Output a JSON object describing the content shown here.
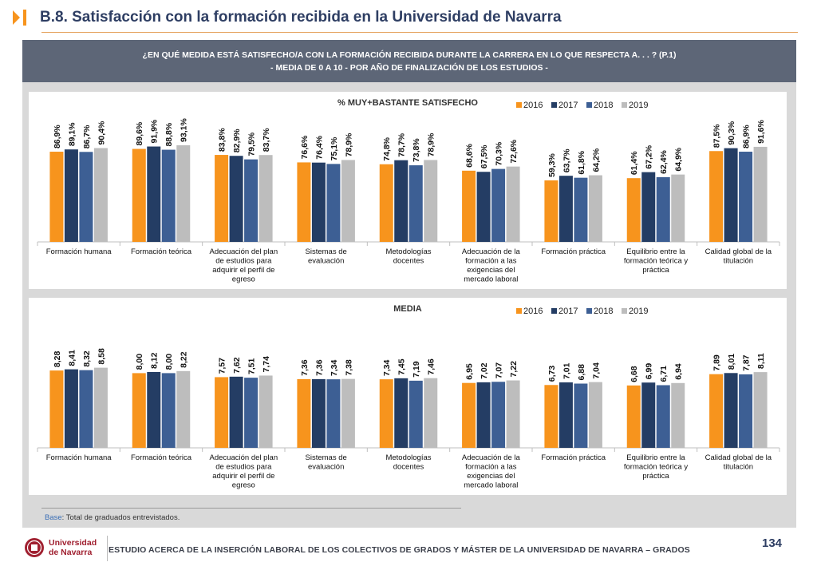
{
  "header": {
    "title": "B.8. Satisfacción con la formación recibida en la Universidad de Navarra"
  },
  "question": {
    "line1": "¿EN QUÉ MEDIDA ESTÁ SATISFECHO/A CON LA FORMACIÓN RECIBIDA DURANTE LA CARRERA EN LO QUE RESPECTA A. . . ? (P.1)",
    "line2": "- MEDIA DE 0 A 10 - POR AÑO DE FINALIZACIÓN DE LOS ESTUDIOS -"
  },
  "colors": {
    "2016": "#f7941d",
    "2017": "#243d64",
    "2018": "#3d5f94",
    "2019": "#bdbdbd"
  },
  "chart_data": [
    {
      "type": "bar",
      "title": "% MUY+BASTANTE SATISFECHO",
      "legend_position": "top-right",
      "ylim": [
        0,
        100
      ],
      "categories": [
        [
          "Formación humana"
        ],
        [
          "Formación teórica"
        ],
        [
          "Adecuación del plan",
          "de estudios para",
          "adquirir el perfil de",
          "egreso"
        ],
        [
          "Sistemas de",
          "evaluación"
        ],
        [
          "Metodologías",
          "docentes"
        ],
        [
          "Adecuación de la",
          "formación a las",
          "exigencias del",
          "mercado laboral"
        ],
        [
          "Formación práctica"
        ],
        [
          "Equilibrio entre la",
          "formación teórica y",
          "práctica"
        ],
        [
          "Calidad global de la",
          "titulación"
        ]
      ],
      "series": [
        {
          "name": "2016",
          "values": [
            86.9,
            89.6,
            83.8,
            76.6,
            74.8,
            68.6,
            59.3,
            61.4,
            87.5
          ],
          "labels": [
            "86,9%",
            "89,6%",
            "83,8%",
            "76,6%",
            "74,8%",
            "68,6%",
            "59,3%",
            "61,4%",
            "87,5%"
          ]
        },
        {
          "name": "2017",
          "values": [
            89.1,
            91.9,
            82.9,
            76.4,
            78.7,
            67.5,
            63.7,
            67.2,
            90.3
          ],
          "labels": [
            "89,1%",
            "91,9%",
            "82,9%",
            "76,4%",
            "78,7%",
            "67,5%",
            "63,7%",
            "67,2%",
            "90,3%"
          ]
        },
        {
          "name": "2018",
          "values": [
            86.7,
            88.8,
            79.5,
            75.1,
            73.8,
            70.3,
            61.8,
            62.4,
            86.9
          ],
          "labels": [
            "86,7%",
            "88,8%",
            "79,5%",
            "75,1%",
            "73,8%",
            "70,3%",
            "61,8%",
            "62,4%",
            "86,9%"
          ]
        },
        {
          "name": "2019",
          "values": [
            90.4,
            93.1,
            83.7,
            78.9,
            78.9,
            72.6,
            64.2,
            64.9,
            91.6
          ],
          "labels": [
            "90,4%",
            "93,1%",
            "83,7%",
            "78,9%",
            "78,9%",
            "72,6%",
            "64,2%",
            "64,9%",
            "91,6%"
          ]
        }
      ]
    },
    {
      "type": "bar",
      "title": "MEDIA",
      "legend_position": "top-right",
      "ylim": [
        0,
        10
      ],
      "categories": [
        [
          "Formación humana"
        ],
        [
          "Formación teórica"
        ],
        [
          "Adecuación del plan",
          "de estudios para",
          "adquirir el perfil de",
          "egreso"
        ],
        [
          "Sistemas de",
          "evaluación"
        ],
        [
          "Metodologías",
          "docentes"
        ],
        [
          "Adecuación de la",
          "formación a las",
          "exigencias del",
          "mercado laboral"
        ],
        [
          "Formación práctica"
        ],
        [
          "Equilibrio entre la",
          "formación teórica y",
          "práctica"
        ],
        [
          "Calidad global de la",
          "titulación"
        ]
      ],
      "series": [
        {
          "name": "2016",
          "values": [
            8.28,
            8.0,
            7.57,
            7.36,
            7.34,
            6.95,
            6.73,
            6.68,
            7.89
          ],
          "labels": [
            "8,28",
            "8,00",
            "7,57",
            "7,36",
            "7,34",
            "6,95",
            "6,73",
            "6,68",
            "7,89"
          ]
        },
        {
          "name": "2017",
          "values": [
            8.41,
            8.12,
            7.62,
            7.36,
            7.45,
            7.02,
            7.01,
            6.99,
            8.01
          ],
          "labels": [
            "8,41",
            "8,12",
            "7,62",
            "7,36",
            "7,45",
            "7,02",
            "7,01",
            "6,99",
            "8,01"
          ]
        },
        {
          "name": "2018",
          "values": [
            8.32,
            8.0,
            7.51,
            7.34,
            7.19,
            7.07,
            6.88,
            6.71,
            7.87
          ],
          "labels": [
            "8,32",
            "8,00",
            "7,51",
            "7,34",
            "7,19",
            "7,07",
            "6,88",
            "6,71",
            "7,87"
          ]
        },
        {
          "name": "2019",
          "values": [
            8.58,
            8.22,
            7.74,
            7.38,
            7.46,
            7.22,
            7.04,
            6.94,
            8.11
          ],
          "labels": [
            "8,58",
            "8,22",
            "7,74",
            "7,38",
            "7,46",
            "7,22",
            "7,04",
            "6,94",
            "8,11"
          ]
        }
      ]
    }
  ],
  "base_note": {
    "label": "Base",
    "text": ": Total de graduados entrevistados."
  },
  "footer": {
    "logo_line1": "Universidad",
    "logo_line2": "de Navarra",
    "text": "ESTUDIO ACERCA DE LA INSERCIÓN LABORAL DE LOS COLECTIVOS DE GRADOS Y MÁSTER DE LA UNIVERSIDAD DE NAVARRA – GRADOS",
    "page_number": "134"
  }
}
